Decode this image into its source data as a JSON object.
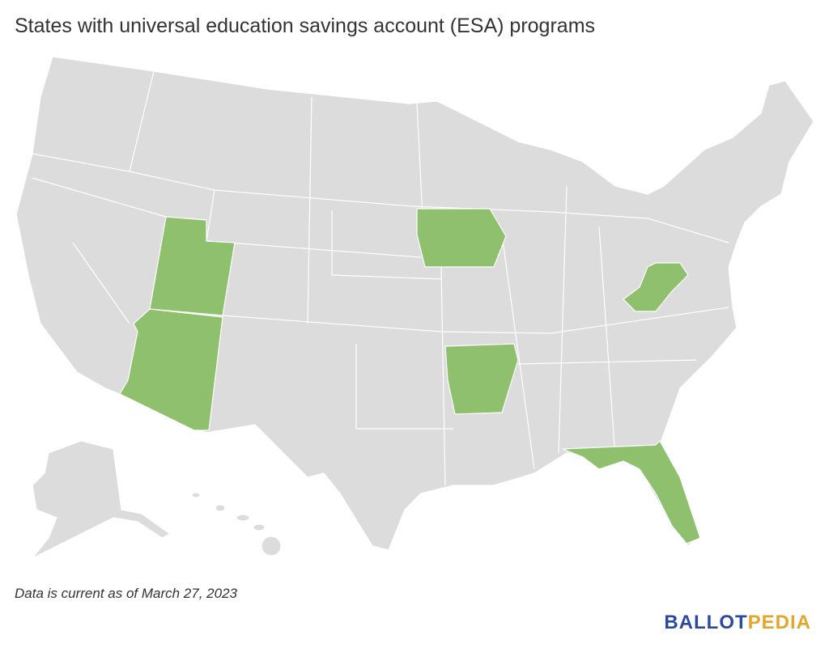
{
  "header": {
    "title": "States with universal education savings account (ESA) programs"
  },
  "footer": {
    "note": "Data is current as of March 27, 2023",
    "logo_part1": "BALLOT",
    "logo_part2": "PEDIA"
  }
}
